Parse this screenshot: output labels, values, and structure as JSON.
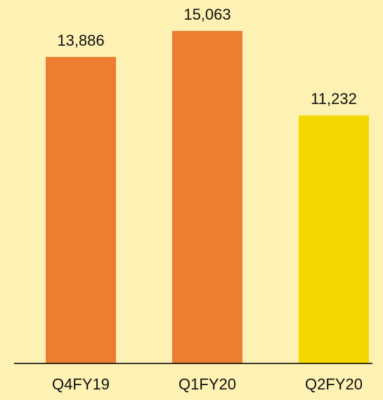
{
  "chart_data": {
    "type": "bar",
    "categories": [
      "Q4FY19",
      "Q1FY20",
      "Q2FY20"
    ],
    "values": [
      13886,
      15063,
      11232
    ],
    "value_labels": [
      "13,886",
      "15,063",
      "11,232"
    ],
    "colors": [
      "#ed7d31",
      "#ed7d31",
      "#f5d800"
    ]
  }
}
